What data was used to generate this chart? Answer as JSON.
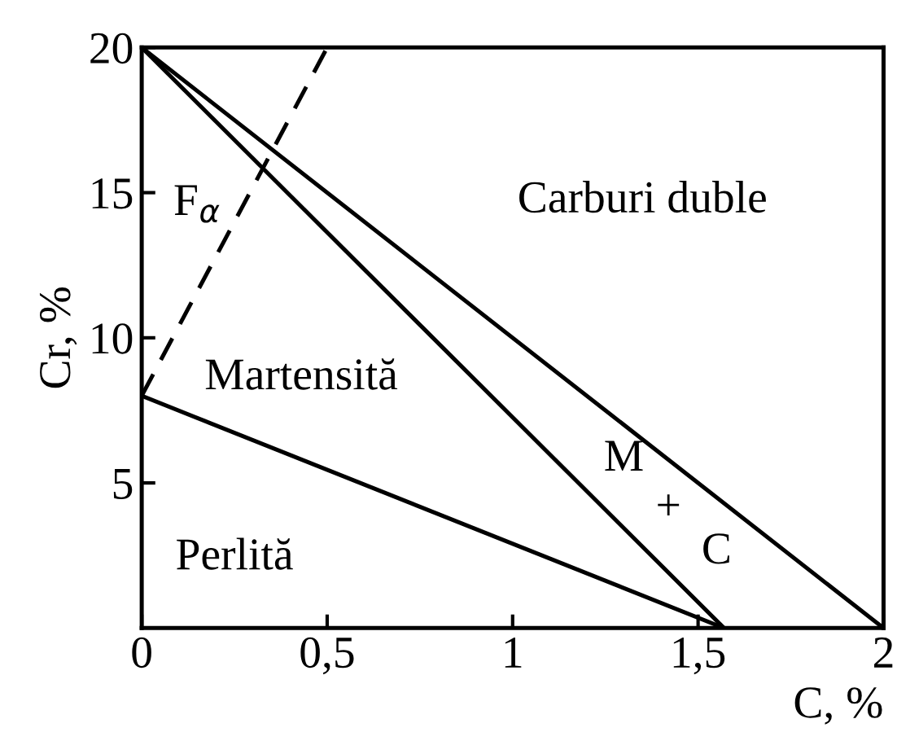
{
  "chart_data": {
    "type": "line",
    "xlabel": "C, %",
    "ylabel": "Cr, %",
    "xlim": [
      0,
      2
    ],
    "ylim": [
      0,
      20
    ],
    "xticks": [
      0,
      {
        "value": 0.5,
        "label": "0,5"
      },
      1,
      {
        "value": 1.5,
        "label": "1,5"
      },
      2
    ],
    "yticks": [
      5,
      10,
      15,
      20
    ],
    "grid": false,
    "legend": false,
    "marker": "none",
    "series": [
      {
        "color": "#000000",
        "x": [
          0,
          1.57
        ],
        "values": [
          8,
          0
        ],
        "line_style": "solid"
      },
      {
        "color": "#000000",
        "x": [
          0,
          1.57
        ],
        "values": [
          20,
          0
        ],
        "line_style": "solid"
      },
      {
        "color": "#000000",
        "x": [
          0,
          2
        ],
        "values": [
          20,
          0
        ],
        "line_style": "solid"
      },
      {
        "color": "#000000",
        "x": [
          0,
          0.5
        ],
        "values": [
          8,
          20
        ],
        "line_style": "dashed"
      }
    ],
    "annotations": [
      "F$_{α}$",
      "Carburi duble",
      "Martensită",
      "M",
      "+",
      "C",
      "Perlită"
    ]
  }
}
